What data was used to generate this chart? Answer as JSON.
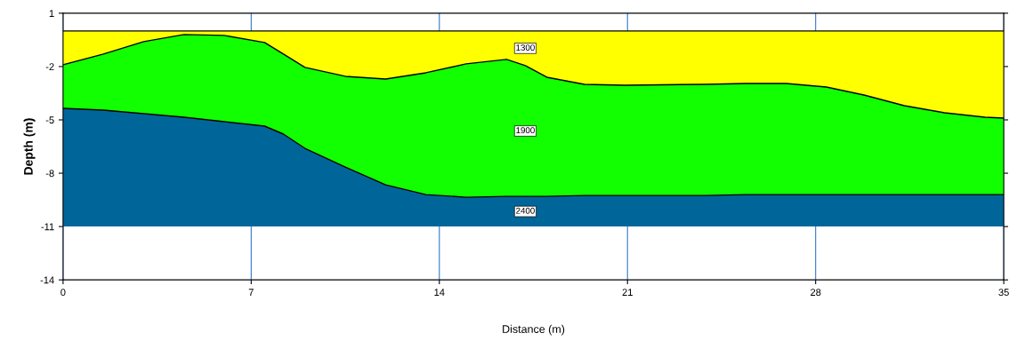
{
  "chart_data": {
    "type": "area",
    "stacked": true,
    "xlabel": "Distance (m)",
    "ylabel": "Depth (m)",
    "x": [
      0,
      1.5,
      3,
      4.5,
      6,
      7.5,
      8.2,
      9,
      10.5,
      12,
      13.5,
      15,
      16.5,
      17.2,
      18,
      19.4,
      20.9,
      23.9,
      25.4,
      26.9,
      28.4,
      29.8,
      31.3,
      32.8,
      34.3,
      35
    ],
    "series": [
      {
        "name": "1300",
        "color": "#ffff00",
        "values": [
          -1.9,
          -1.3,
          -0.6,
          -0.2,
          -0.25,
          -0.65,
          -1.3,
          -2.05,
          -2.55,
          -2.7,
          -2.35,
          -1.85,
          -1.6,
          -1.95,
          -2.6,
          -3.0,
          -3.05,
          -3.0,
          -2.95,
          -2.95,
          -3.15,
          -3.6,
          -4.2,
          -4.6,
          -4.85,
          -4.9
        ]
      },
      {
        "name": "1900",
        "color": "#11ff00",
        "values": [
          -2.45,
          -3.15,
          -4.05,
          -4.65,
          -4.85,
          -4.7,
          -4.5,
          -4.55,
          -5.1,
          -5.95,
          -6.85,
          -7.5,
          -7.7,
          -7.35,
          -6.7,
          -6.25,
          -6.2,
          -6.25,
          -6.25,
          -6.25,
          -6.05,
          -5.6,
          -5.0,
          -4.6,
          -4.35,
          -4.3
        ]
      },
      {
        "name": "2400",
        "color": "#006699",
        "values": [
          -6.65,
          -6.55,
          -6.35,
          -6.15,
          -5.9,
          -5.65,
          -5.2,
          -4.4,
          -3.35,
          -2.35,
          -1.8,
          -1.65,
          -1.7,
          -1.7,
          -1.7,
          -1.75,
          -1.75,
          -1.75,
          -1.8,
          -1.8,
          -1.8,
          -1.8,
          -1.8,
          -1.8,
          -1.8,
          -1.8
        ]
      }
    ],
    "xlim": [
      0,
      35
    ],
    "xticks": [
      0,
      7,
      14,
      21,
      28,
      35
    ],
    "ylim": [
      -14,
      1
    ],
    "yticks": [
      1,
      -2,
      -5,
      -8,
      -11,
      -14
    ],
    "grid": "x"
  }
}
